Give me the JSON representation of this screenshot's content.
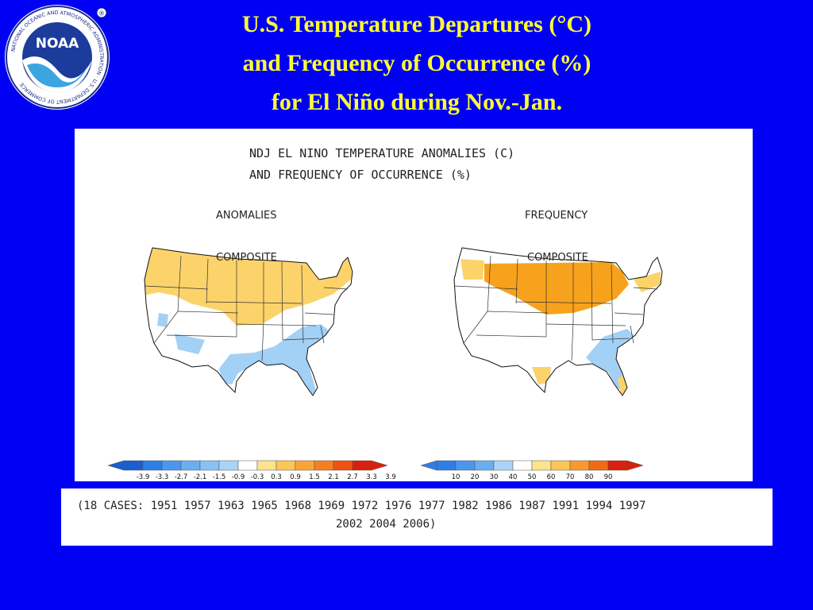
{
  "slide": {
    "logo_text": "NOAA",
    "logo_ring_text": "NATIONAL OCEANIC AND ATMOSPHERIC ADMINISTRATION · U.S. DEPARTMENT OF COMMERCE",
    "title_lines": [
      "U.S. Temperature Departures (°C)",
      "and Frequency of Occurrence (%)",
      "for El Niño during Nov.-Jan."
    ]
  },
  "figure": {
    "heading_lines": [
      "NDJ EL NINO TEMPERATURE ANOMALIES (C)",
      "AND FREQUENCY OF OCCURRENCE (%)"
    ],
    "left_panel": {
      "title": "ANOMALIES",
      "subtitle": "COMPOSITE"
    },
    "right_panel": {
      "title": "FREQUENCY",
      "subtitle": "COMPOSITE"
    },
    "anomaly_legend": {
      "labels": [
        "-3.9",
        "-3.3",
        "-2.7",
        "-2.1",
        "-1.5",
        "-0.9",
        "-0.3",
        "0.3",
        "0.9",
        "1.5",
        "2.1",
        "2.7",
        "3.3",
        "3.9"
      ],
      "colors": [
        "#1a5fd0",
        "#2f7ee6",
        "#4c97ee",
        "#6aaef2",
        "#89c1f5",
        "#a9d4f8",
        "#ffffff",
        "#fde38a",
        "#fdc656",
        "#fca536",
        "#f7801e",
        "#ef5313",
        "#d9200c"
      ]
    },
    "frequency_legend": {
      "labels": [
        "10",
        "20",
        "30",
        "40",
        "50",
        "60",
        "70",
        "80",
        "90"
      ],
      "colors": [
        "#2f7ee6",
        "#4c97ee",
        "#6aaef2",
        "#a9d4f8",
        "#ffffff",
        "#fde38a",
        "#fdc656",
        "#f99a2e",
        "#f06a16",
        "#d9200c"
      ]
    },
    "shading_colors": {
      "warm": "#fcd36a",
      "cool": "#a3d0f5",
      "warm_strong": "#f7a21c"
    }
  },
  "cases": {
    "line1": "(18 CASES:  1951 1957 1963 1965 1968 1969 1972 1976 1977 1982 1986 1987 1991 1994 1997",
    "line2": "2002 2004 2006)"
  }
}
